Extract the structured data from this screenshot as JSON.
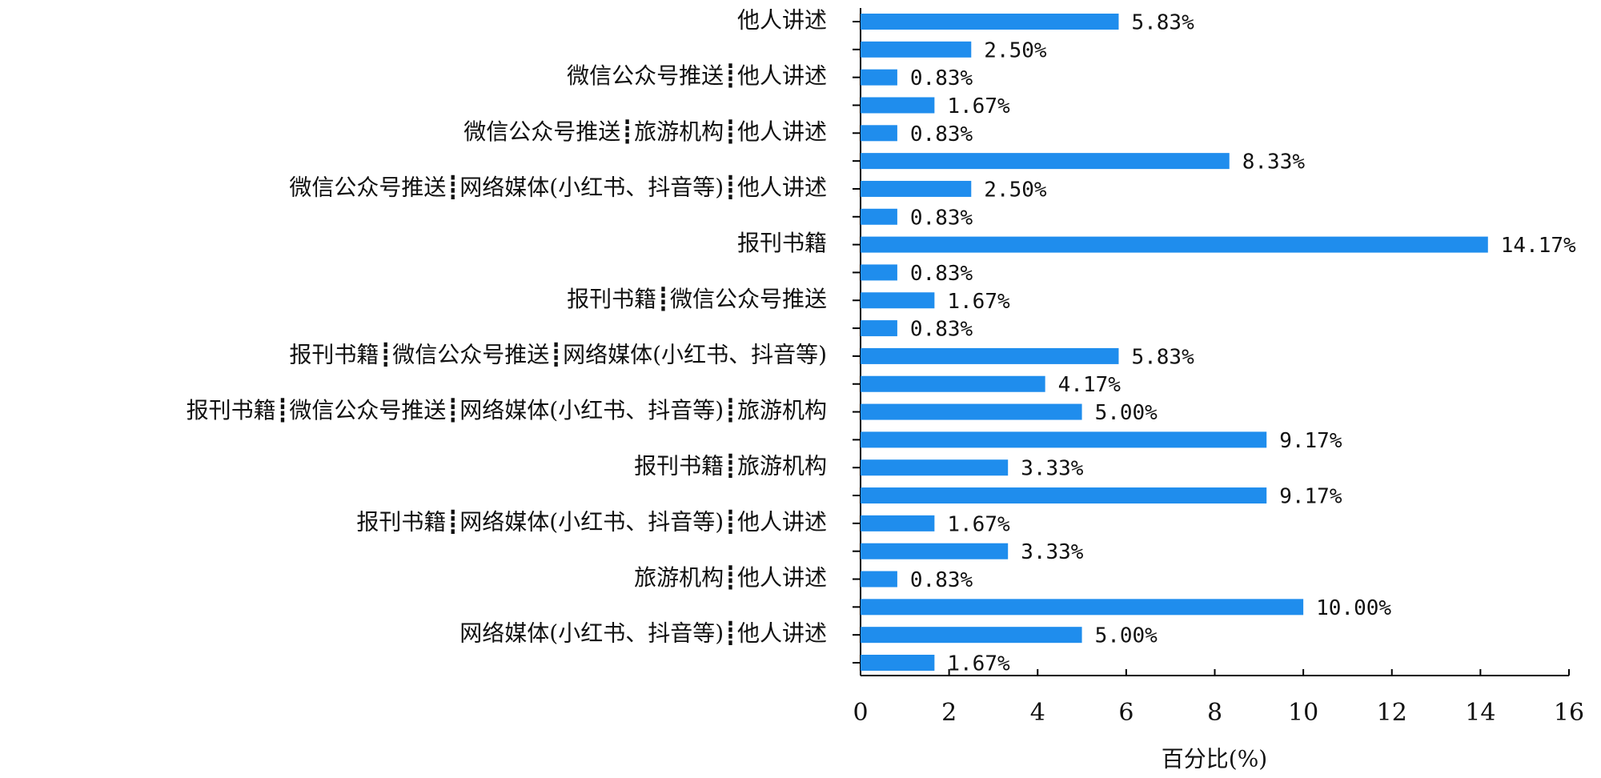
{
  "chart_data": {
    "type": "barh",
    "x_label": "百分比(%)",
    "categories": [
      "他人讲述",
      null,
      "微信公众号推送┋他人讲述",
      null,
      "微信公众号推送┋旅游机构┋他人讲述",
      null,
      "微信公众号推送┋网络媒体(小红书、抖音等)┋他人讲述",
      null,
      "报刊书籍",
      null,
      "报刊书籍┋微信公众号推送",
      null,
      "报刊书籍┋微信公众号推送┋网络媒体(小红书、抖音等)",
      null,
      "报刊书籍┋微信公众号推送┋网络媒体(小红书、抖音等)┋旅游机构",
      null,
      "报刊书籍┋旅游机构",
      null,
      "报刊书籍┋网络媒体(小红书、抖音等)┋他人讲述",
      null,
      "旅游机构┋他人讲述",
      null,
      "网络媒体(小红书、抖音等)┋他人讲述",
      null
    ],
    "values": [
      5.83,
      2.5,
      0.83,
      1.67,
      0.83,
      8.33,
      2.5,
      0.83,
      14.17,
      0.83,
      1.67,
      0.83,
      5.83,
      4.17,
      5.0,
      9.17,
      3.33,
      9.17,
      1.67,
      3.33,
      0.83,
      10.0,
      5.0,
      1.67
    ],
    "value_labels": [
      "5.83%",
      "2.50%",
      "0.83%",
      "1.67%",
      "0.83%",
      "8.33%",
      "2.50%",
      "0.83%",
      "14.17%",
      "0.83%",
      "1.67%",
      "0.83%",
      "5.83%",
      "4.17%",
      "5.00%",
      "9.17%",
      "3.33%",
      "9.17%",
      "1.67%",
      "3.33%",
      "0.83%",
      "10.00%",
      "5.00%",
      "1.67%"
    ],
    "color": "#1f8ded",
    "xlim": [
      0,
      16
    ],
    "xticks": [
      0,
      2,
      4,
      6,
      8,
      10,
      12,
      14,
      16
    ]
  }
}
